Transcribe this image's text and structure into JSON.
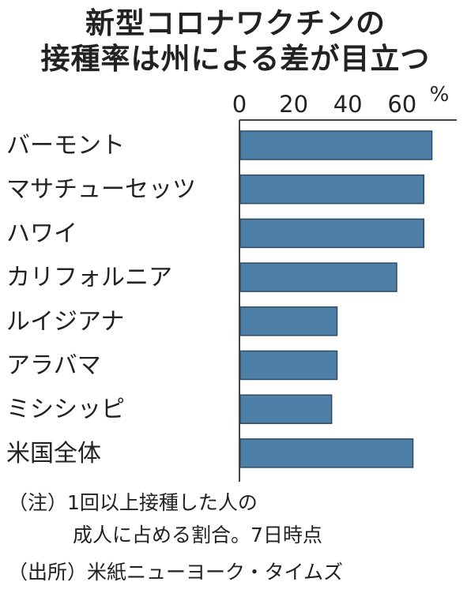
{
  "title_lines": [
    "新型コロナワクチンの",
    "接種率は州による差が目立つ"
  ],
  "chart_data": {
    "type": "bar",
    "orientation": "horizontal",
    "unit": "%",
    "categories": [
      "バーモント",
      "マサチューセッツ",
      "ハワイ",
      "カリフォルニア",
      "ルイジアナ",
      "アラバマ",
      "ミシシッピ",
      "米国全体"
    ],
    "values": [
      71,
      68,
      68,
      58,
      36,
      36,
      34,
      64
    ],
    "xticks": [
      0,
      20,
      40,
      60
    ],
    "xlim": [
      0,
      80
    ],
    "axis_position": "top",
    "bar_color": "#4e7fa6"
  },
  "notes": [
    "（注）1回以上接種した人の",
    "成人に占める割合。7日時点",
    "（出所）米紙ニューヨーク・タイムズ"
  ]
}
